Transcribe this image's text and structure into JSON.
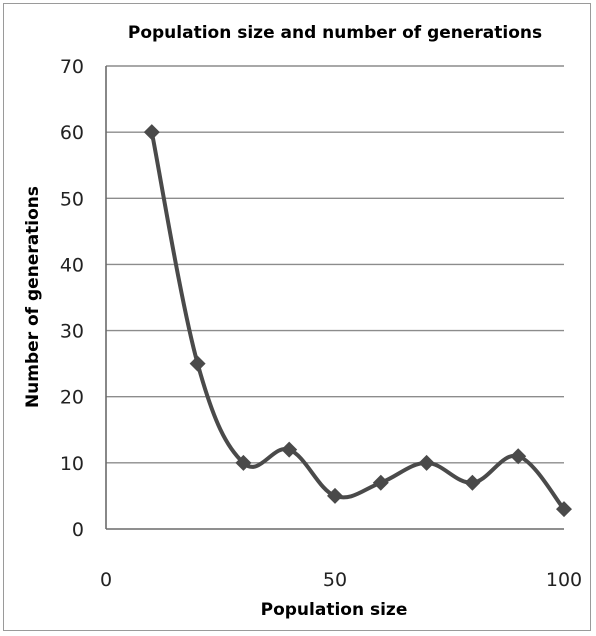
{
  "chart_data": {
    "type": "line",
    "title": "Population size and number of generations",
    "xlabel": "Population size",
    "ylabel": "Number of generations",
    "xlim": [
      0,
      100
    ],
    "ylim": [
      0,
      70
    ],
    "xticks": [
      0,
      50,
      100
    ],
    "yticks": [
      0,
      10,
      20,
      30,
      40,
      50,
      60,
      70
    ],
    "grid": true,
    "smoothed": true,
    "marker": "diamond",
    "series_color": "#4a4a4a",
    "series": [
      {
        "x": [
          10,
          20,
          30,
          40,
          50,
          60,
          70,
          80,
          90,
          100
        ],
        "values": [
          60,
          25,
          10,
          12,
          5,
          7,
          10,
          7,
          11,
          3
        ]
      }
    ]
  }
}
